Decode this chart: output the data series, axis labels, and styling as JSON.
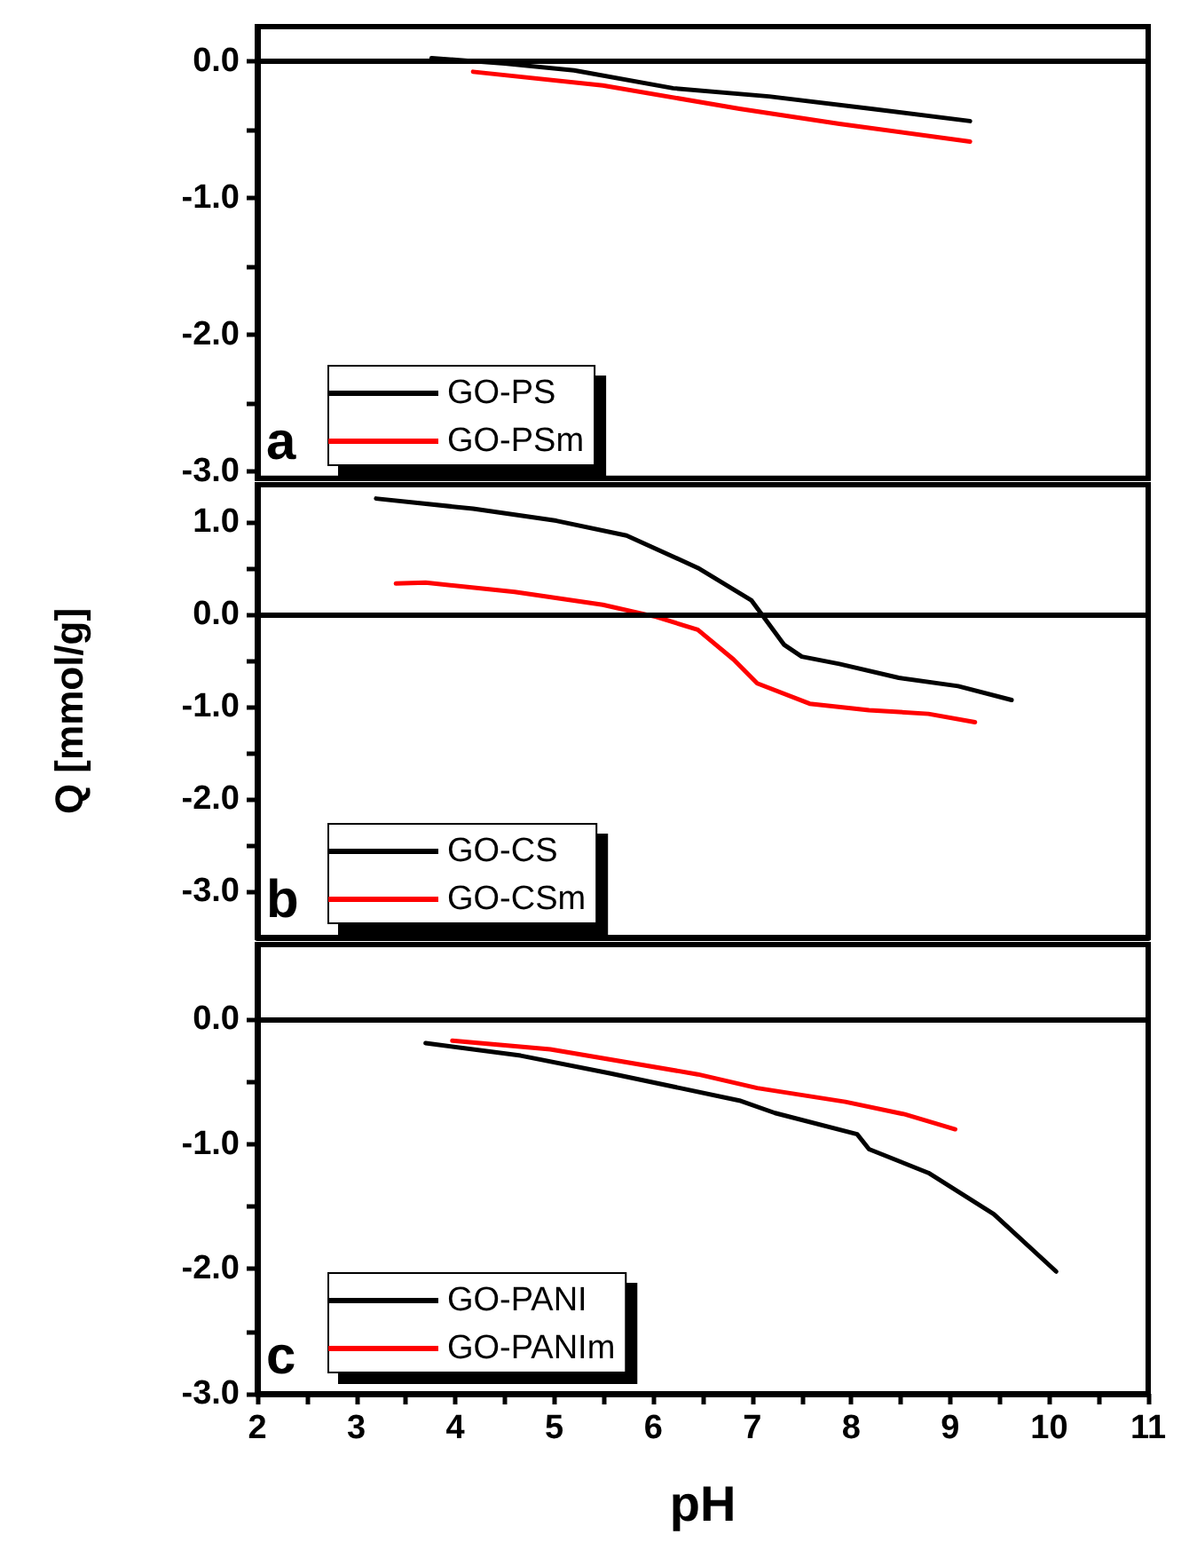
{
  "chart_data": [
    {
      "type": "line",
      "marker": "none",
      "legend": "bottom left",
      "tick_labels": "y",
      "annotations": [
        "a"
      ],
      "xlim": [
        2,
        11
      ],
      "xticks": [
        2,
        3,
        4,
        5,
        6,
        7,
        8,
        9,
        10,
        11
      ],
      "ylim": [
        -3.05,
        0.25
      ],
      "yticks": [
        {
          "value": 0,
          "label": "0.0"
        },
        {
          "value": -0.5,
          "label": null
        },
        {
          "value": -1,
          "label": "-1.0"
        },
        {
          "value": -1.5,
          "label": null
        },
        {
          "value": -2,
          "label": "-2.0"
        },
        {
          "value": -2.5,
          "label": null
        },
        {
          "value": -3,
          "label": "-3.0"
        }
      ],
      "ref_lines": [
        {
          "axis": "y",
          "value": 0,
          "color": "#000000"
        }
      ],
      "series": [
        {
          "name": "GO-PS",
          "color": "#000000",
          "x": [
            3.76,
            4.5,
            5.2,
            6.2,
            7.17,
            8.2,
            9.2
          ],
          "values": [
            0.02,
            -0.02,
            -0.07,
            -0.2,
            -0.26,
            -0.35,
            -0.44
          ]
        },
        {
          "name": "GO-PSm",
          "color": "#ff0000",
          "x": [
            4.18,
            5.49,
            6.87,
            7.88,
            9.2
          ],
          "values": [
            -0.08,
            -0.18,
            -0.35,
            -0.46,
            -0.59
          ]
        }
      ]
    },
    {
      "type": "line",
      "marker": "none",
      "legend": "bottom left",
      "tick_labels": "y",
      "annotations": [
        "b"
      ],
      "ylabel": "Q [mmol/g]",
      "xlim": [
        2,
        11
      ],
      "xticks": [
        2,
        3,
        4,
        5,
        6,
        7,
        8,
        9,
        10,
        11
      ],
      "ylim": [
        -3.5,
        1.4
      ],
      "yticks": [
        {
          "value": 1,
          "label": "1.0"
        },
        {
          "value": 0.5,
          "label": null
        },
        {
          "value": 0,
          "label": "0.0"
        },
        {
          "value": -0.5,
          "label": null
        },
        {
          "value": -1,
          "label": "-1.0"
        },
        {
          "value": -1.5,
          "label": null
        },
        {
          "value": -2,
          "label": "-2.0"
        },
        {
          "value": -2.5,
          "label": null
        },
        {
          "value": -3,
          "label": "-3.0"
        }
      ],
      "ref_lines": [
        {
          "axis": "y",
          "value": 0,
          "color": "#000000"
        }
      ],
      "series": [
        {
          "name": "GO-CS",
          "color": "#000000",
          "x": [
            3.2,
            4.18,
            5.02,
            5.73,
            6.45,
            6.99,
            7.17,
            7.32,
            7.5,
            7.88,
            8.48,
            9.08,
            9.62
          ],
          "values": [
            1.25,
            1.14,
            1.01,
            0.85,
            0.5,
            0.15,
            -0.11,
            -0.33,
            -0.46,
            -0.54,
            -0.69,
            -0.78,
            -0.93
          ]
        },
        {
          "name": "GO-CSm",
          "color": "#ff0000",
          "x": [
            3.4,
            3.7,
            4.6,
            5.49,
            6.03,
            6.45,
            6.81,
            7.05,
            7.58,
            8.18,
            8.78,
            9.25
          ],
          "values": [
            0.33,
            0.34,
            0.24,
            0.1,
            -0.03,
            -0.17,
            -0.49,
            -0.75,
            -0.97,
            -1.04,
            -1.08,
            -1.17
          ]
        }
      ]
    },
    {
      "type": "line",
      "marker": "none",
      "legend": "bottom left",
      "annotations": [
        "c"
      ],
      "xlabel": "pH",
      "xlim": [
        2,
        11
      ],
      "xticks": [
        2,
        {
          "value": 2.5,
          "label": null
        },
        3,
        {
          "value": 3.5,
          "label": null
        },
        4,
        {
          "value": 4.5,
          "label": null
        },
        5,
        {
          "value": 5.5,
          "label": null
        },
        6,
        {
          "value": 6.5,
          "label": null
        },
        7,
        {
          "value": 7.5,
          "label": null
        },
        8,
        {
          "value": 8.5,
          "label": null
        },
        9,
        {
          "value": 9.5,
          "label": null
        },
        10,
        {
          "value": 10.5,
          "label": null
        },
        11
      ],
      "ylim": [
        -3,
        0.6
      ],
      "yticks": [
        {
          "value": 0,
          "label": "0.0"
        },
        {
          "value": -0.5,
          "label": null
        },
        {
          "value": -1,
          "label": "-1.0"
        },
        {
          "value": -1.5,
          "label": null
        },
        {
          "value": -2,
          "label": "-2.0"
        },
        {
          "value": -2.5,
          "label": null
        },
        {
          "value": -3,
          "label": "-3.0"
        }
      ],
      "ref_lines": [
        {
          "axis": "y",
          "value": 0,
          "color": "#000000"
        }
      ],
      "series": [
        {
          "name": "GO-PANI",
          "color": "#000000",
          "x": [
            3.7,
            4.66,
            5.55,
            6.27,
            6.87,
            7.23,
            8.06,
            8.18,
            8.78,
            9.44,
            10.07
          ],
          "values": [
            -0.19,
            -0.29,
            -0.43,
            -0.55,
            -0.65,
            -0.75,
            -0.92,
            -1.04,
            -1.23,
            -1.56,
            -2.02
          ]
        },
        {
          "name": "GO-PANIm",
          "color": "#ff0000",
          "x": [
            3.97,
            4.96,
            6.45,
            7.05,
            7.94,
            8.54,
            9.05
          ],
          "values": [
            -0.17,
            -0.24,
            -0.44,
            -0.55,
            -0.66,
            -0.76,
            -0.88
          ]
        }
      ]
    }
  ]
}
